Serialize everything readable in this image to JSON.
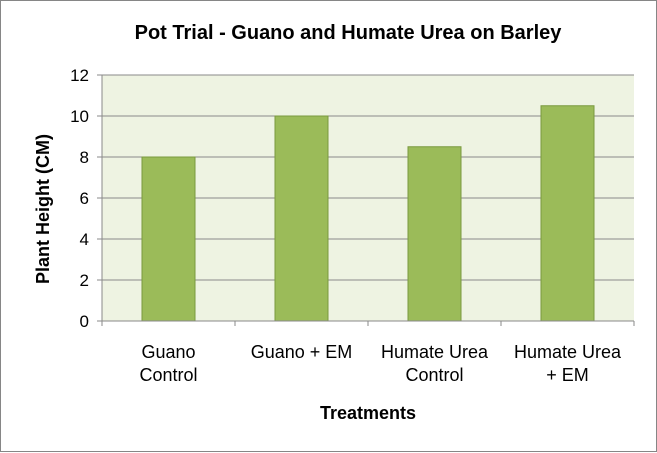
{
  "chart_data": {
    "type": "bar",
    "title": "Pot Trial - Guano and Humate Urea on Barley",
    "xlabel": "Treatments",
    "ylabel": "Plant Height (CM)",
    "categories": [
      [
        "Guano",
        "Control"
      ],
      [
        "Guano + EM"
      ],
      [
        "Humate Urea",
        "Control"
      ],
      [
        "Humate Urea",
        "+ EM"
      ]
    ],
    "values": [
      8,
      10,
      8.5,
      10.5
    ],
    "ylim": [
      0,
      12
    ],
    "yticks": [
      0,
      2,
      4,
      6,
      8,
      10,
      12
    ],
    "grid": true,
    "legend": "none",
    "colors": {
      "bar_fill": "#9BBB59",
      "bar_stroke": "#7a9a3e",
      "plot_bg": "#EEF3E2",
      "gridline": "#8a8a8a",
      "axis": "#8a8a8a"
    }
  }
}
